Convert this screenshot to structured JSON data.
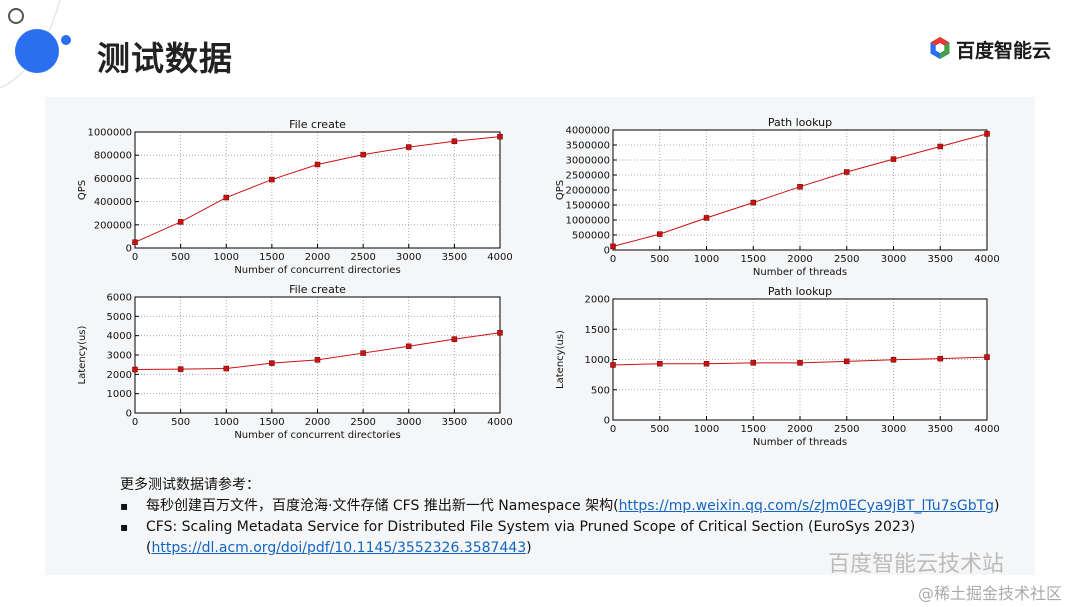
{
  "header": {
    "title": "测试数据",
    "logo": "百度智能云"
  },
  "chart_data": [
    {
      "type": "line",
      "title": "File create",
      "xlabel": "Number of concurrent directories",
      "ylabel": "QPS",
      "x": [
        0,
        500,
        1000,
        1500,
        2000,
        2500,
        3000,
        3500,
        4000
      ],
      "values": [
        50000,
        225000,
        435000,
        590000,
        720000,
        805000,
        870000,
        920000,
        960000
      ],
      "color": "#cc1111",
      "marker": "square",
      "grid": true,
      "xlim": [
        0,
        4000
      ],
      "xticks": [
        0,
        500,
        1000,
        1500,
        2000,
        2500,
        3000,
        3500,
        4000
      ],
      "ylim": [
        0,
        1000000
      ],
      "yticks": [
        0,
        200000,
        400000,
        600000,
        800000,
        1000000
      ]
    },
    {
      "type": "line",
      "title": "Path lookup",
      "xlabel": "Number of threads",
      "ylabel": "QPS",
      "x": [
        0,
        500,
        1000,
        1500,
        2000,
        2500,
        3000,
        3500,
        4000
      ],
      "values": [
        120000,
        530000,
        1070000,
        1580000,
        2110000,
        2600000,
        3030000,
        3450000,
        3870000
      ],
      "color": "#cc1111",
      "marker": "square",
      "grid": true,
      "xlim": [
        0,
        4000
      ],
      "xticks": [
        0,
        500,
        1000,
        1500,
        2000,
        2500,
        3000,
        3500,
        4000
      ],
      "ylim": [
        0,
        4000000
      ],
      "yticks": [
        0,
        500000,
        1000000,
        1500000,
        2000000,
        2500000,
        3000000,
        3500000,
        4000000
      ]
    },
    {
      "type": "line",
      "title": "File create",
      "xlabel": "Number of concurrent directories",
      "ylabel": "Latency(us)",
      "x": [
        0,
        500,
        1000,
        1500,
        2000,
        2500,
        3000,
        3500,
        4000
      ],
      "values": [
        2250,
        2270,
        2300,
        2580,
        2750,
        3100,
        3450,
        3820,
        4150
      ],
      "color": "#cc1111",
      "marker": "square",
      "grid": true,
      "xlim": [
        0,
        4000
      ],
      "xticks": [
        0,
        500,
        1000,
        1500,
        2000,
        2500,
        3000,
        3500,
        4000
      ],
      "ylim": [
        0,
        6000
      ],
      "yticks": [
        0,
        1000,
        2000,
        3000,
        4000,
        5000,
        6000
      ]
    },
    {
      "type": "line",
      "title": "Path lookup",
      "xlabel": "Number of threads",
      "ylabel": "Latency(us)",
      "x": [
        0,
        500,
        1000,
        1500,
        2000,
        2500,
        3000,
        3500,
        4000
      ],
      "values": [
        910,
        930,
        930,
        945,
        945,
        970,
        995,
        1015,
        1040
      ],
      "color": "#cc1111",
      "marker": "square",
      "grid": true,
      "xlim": [
        0,
        4000
      ],
      "xticks": [
        0,
        500,
        1000,
        1500,
        2000,
        2500,
        3000,
        3500,
        4000
      ],
      "ylim": [
        0,
        2000
      ],
      "yticks": [
        0,
        500,
        1000,
        1500,
        2000
      ]
    }
  ],
  "notes": {
    "intro": "更多测试数据请参考：",
    "items": [
      {
        "text": "每秒创建百万文件，百度沧海·文件存储 CFS 推出新一代 Namespace 架构(",
        "link": "https://mp.weixin.qq.com/s/zJm0ECya9jBT_lTu7sGbTg",
        "link_suffix": ")"
      },
      {
        "text": "CFS: Scaling Metadata Service for Distributed File System via Pruned Scope of Critical Section (EuroSys 2023)",
        "link_prefix": "(",
        "link": "https://dl.acm.org/doi/pdf/10.1145/3552326.3587443",
        "link_suffix": ")"
      }
    ]
  },
  "watermarks": [
    "百度智能云技术站",
    "@稀土掘金技术社区"
  ]
}
